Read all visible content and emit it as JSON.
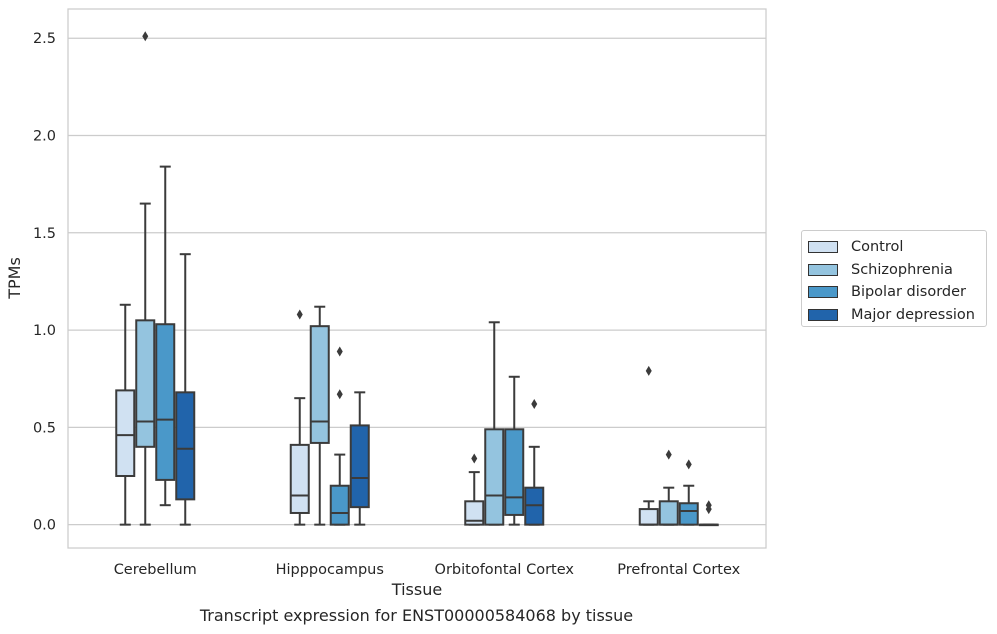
{
  "chart_data": {
    "type": "boxplot",
    "xlabel": "Tissue",
    "ylabel": "TPMs",
    "ylim": [
      -0.12,
      2.65
    ],
    "yticks": [
      0.0,
      0.5,
      1.0,
      1.5,
      2.0,
      2.5
    ],
    "ytick_labels": [
      "0.0",
      "0.5",
      "1.0",
      "1.5",
      "2.0",
      "2.5"
    ],
    "grid": "horizontal",
    "legend_position": "right",
    "categories": [
      "Cerebellum",
      "Hipppocampus",
      "Orbitofontal Cortex",
      "Prefrontal Cortex"
    ],
    "series": [
      {
        "name": "Control",
        "color": "#d0e1f2",
        "boxes": [
          {
            "whislo": 0.0,
            "q1": 0.25,
            "med": 0.46,
            "q3": 0.69,
            "whishi": 1.13,
            "fliers": []
          },
          {
            "whislo": 0.0,
            "q1": 0.06,
            "med": 0.15,
            "q3": 0.41,
            "whishi": 0.65,
            "fliers": [
              1.08
            ]
          },
          {
            "whislo": 0.0,
            "q1": 0.0,
            "med": 0.02,
            "q3": 0.12,
            "whishi": 0.27,
            "fliers": [
              0.34
            ]
          },
          {
            "whislo": 0.0,
            "q1": 0.0,
            "med": 0.0,
            "q3": 0.08,
            "whishi": 0.12,
            "fliers": [
              0.79
            ]
          }
        ]
      },
      {
        "name": "Schizophrenia",
        "color": "#94c4df",
        "boxes": [
          {
            "whislo": 0.0,
            "q1": 0.4,
            "med": 0.53,
            "q3": 1.05,
            "whishi": 1.65,
            "fliers": [
              2.51
            ]
          },
          {
            "whislo": 0.0,
            "q1": 0.42,
            "med": 0.53,
            "q3": 1.02,
            "whishi": 1.12,
            "fliers": []
          },
          {
            "whislo": 0.0,
            "q1": 0.0,
            "med": 0.15,
            "q3": 0.49,
            "whishi": 1.04,
            "fliers": []
          },
          {
            "whislo": 0.0,
            "q1": 0.0,
            "med": 0.0,
            "q3": 0.12,
            "whishi": 0.19,
            "fliers": [
              0.36
            ]
          }
        ]
      },
      {
        "name": "Bipolar disorder",
        "color": "#4a98c9",
        "boxes": [
          {
            "whislo": 0.1,
            "q1": 0.23,
            "med": 0.54,
            "q3": 1.03,
            "whishi": 1.84,
            "fliers": []
          },
          {
            "whislo": 0.0,
            "q1": 0.0,
            "med": 0.06,
            "q3": 0.2,
            "whishi": 0.36,
            "fliers": [
              0.67,
              0.89
            ]
          },
          {
            "whislo": 0.0,
            "q1": 0.05,
            "med": 0.14,
            "q3": 0.49,
            "whishi": 0.76,
            "fliers": []
          },
          {
            "whislo": 0.0,
            "q1": 0.0,
            "med": 0.07,
            "q3": 0.11,
            "whishi": 0.2,
            "fliers": [
              0.31
            ]
          }
        ]
      },
      {
        "name": "Major depression",
        "color": "#2164ab",
        "boxes": [
          {
            "whislo": 0.0,
            "q1": 0.13,
            "med": 0.39,
            "q3": 0.68,
            "whishi": 1.39,
            "fliers": []
          },
          {
            "whislo": 0.0,
            "q1": 0.09,
            "med": 0.24,
            "q3": 0.51,
            "whishi": 0.68,
            "fliers": []
          },
          {
            "whislo": 0.0,
            "q1": 0.0,
            "med": 0.1,
            "q3": 0.19,
            "whishi": 0.4,
            "fliers": [
              0.62
            ]
          },
          {
            "whislo": 0.0,
            "q1": 0.0,
            "med": 0.0,
            "q3": 0.0,
            "whishi": 0.0,
            "fliers": [
              0.08,
              0.1
            ]
          }
        ]
      }
    ]
  },
  "caption": "Transcript expression for ENST00000584068 by tissue"
}
